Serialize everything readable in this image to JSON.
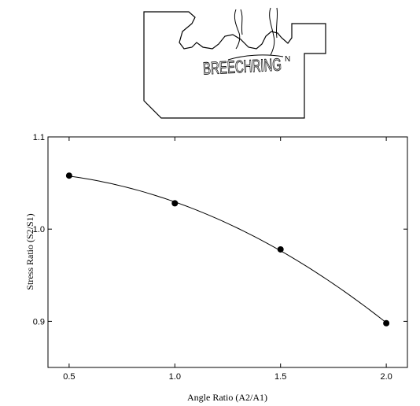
{
  "diagram": {
    "label_main": "BREECHRING",
    "label_small": "N"
  },
  "chart_data": {
    "type": "scatter",
    "title": "",
    "xlabel": "Angle Ratio (A2/A1)",
    "ylabel": "Stress Ratio (S2/S1)",
    "xlim": [
      0.4,
      2.1
    ],
    "ylim": [
      0.85,
      1.1
    ],
    "x_ticks": [
      "0.5",
      "1.0",
      "1.5",
      "2.0"
    ],
    "y_ticks": [
      "0.9",
      "1.0",
      "1.1"
    ],
    "series": [
      {
        "points": [
          {
            "x": 0.5,
            "y": 1.058
          },
          {
            "x": 1.0,
            "y": 1.028
          },
          {
            "x": 1.5,
            "y": 0.978
          },
          {
            "x": 2.0,
            "y": 0.898
          }
        ],
        "fit_line": true
      }
    ],
    "grid": false,
    "legend": "none",
    "colors": {
      "marker": "#000000",
      "line": "#000000"
    }
  }
}
